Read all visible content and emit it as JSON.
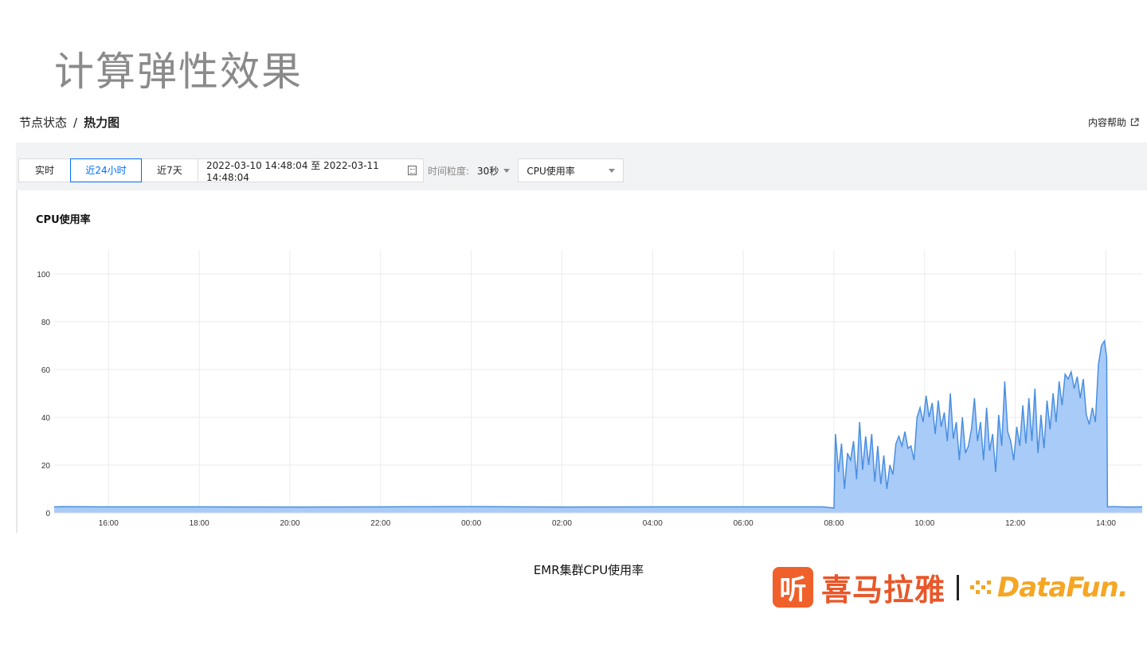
{
  "slide": {
    "title": "计算弹性效果",
    "caption": "EMR集群CPU使用率"
  },
  "breadcrumb": {
    "parent": "节点状态",
    "separator": "/",
    "current": "热力图"
  },
  "help": {
    "label": "内容帮助",
    "icon": "external-link-icon"
  },
  "toolbar": {
    "buttons": [
      "实时",
      "近24小时",
      "近7天"
    ],
    "active_index": 1,
    "date_range": "2022-03-10 14:48:04 至 2022-03-11 14:48:04",
    "date_icon": "calendar-icon",
    "granularity_label": "时间粒度:",
    "granularity_value": "30秒",
    "metric_value": "CPU使用率"
  },
  "colors": {
    "accent": "#006eff",
    "line": "#4a8fe0",
    "fill": "#a9cbf8",
    "title_gray": "#8a8a8a",
    "logo_orange": "#e8572a",
    "datafun_yellow": "#f5a623"
  },
  "chart_data": {
    "type": "area",
    "title": "CPU使用率",
    "xlabel": "",
    "ylabel": "",
    "ylim": [
      0,
      110
    ],
    "yticks": [
      0,
      20,
      40,
      60,
      80,
      100
    ],
    "x_start": "2022-03-10 14:48",
    "x_end": "2022-03-11 14:48",
    "xticks": [
      {
        "time": "2022-03-10 16:00",
        "label": "16:00"
      },
      {
        "time": "2022-03-10 18:00",
        "label": "18:00"
      },
      {
        "time": "2022-03-10 20:00",
        "label": "20:00"
      },
      {
        "time": "2022-03-10 22:00",
        "label": "22:00"
      },
      {
        "time": "2022-03-11 00:00",
        "label": "00:00"
      },
      {
        "time": "2022-03-11 02:00",
        "label": "02:00"
      },
      {
        "time": "2022-03-11 04:00",
        "label": "04:00"
      },
      {
        "time": "2022-03-11 06:00",
        "label": "06:00"
      },
      {
        "time": "2022-03-11 08:00",
        "label": "08:00"
      },
      {
        "time": "2022-03-11 10:00",
        "label": "10:00"
      },
      {
        "time": "2022-03-11 12:00",
        "label": "12:00"
      },
      {
        "time": "2022-03-11 14:00",
        "label": "14:00"
      }
    ],
    "grid": true,
    "series": [
      {
        "values": [
          [
            "2022-03-10 14:48",
            2.5
          ],
          [
            "2022-03-10 15:00",
            2.6
          ],
          [
            "2022-03-10 16:00",
            2.5
          ],
          [
            "2022-03-10 18:00",
            2.5
          ],
          [
            "2022-03-10 20:00",
            2.4
          ],
          [
            "2022-03-10 22:00",
            2.5
          ],
          [
            "2022-03-11 00:00",
            2.6
          ],
          [
            "2022-03-11 02:00",
            2.4
          ],
          [
            "2022-03-11 04:00",
            2.5
          ],
          [
            "2022-03-11 06:00",
            2.5
          ],
          [
            "2022-03-11 07:45",
            2.5
          ],
          [
            "2022-03-11 08:00",
            2
          ],
          [
            "2022-03-11 08:02",
            33
          ],
          [
            "2022-03-11 08:06",
            17
          ],
          [
            "2022-03-11 08:10",
            29
          ],
          [
            "2022-03-11 08:14",
            10
          ],
          [
            "2022-03-11 08:18",
            25
          ],
          [
            "2022-03-11 08:22",
            22
          ],
          [
            "2022-03-11 08:26",
            30
          ],
          [
            "2022-03-11 08:30",
            14
          ],
          [
            "2022-03-11 08:34",
            38
          ],
          [
            "2022-03-11 08:38",
            18
          ],
          [
            "2022-03-11 08:42",
            32
          ],
          [
            "2022-03-11 08:46",
            20
          ],
          [
            "2022-03-11 08:50",
            33
          ],
          [
            "2022-03-11 08:54",
            13
          ],
          [
            "2022-03-11 08:58",
            28
          ],
          [
            "2022-03-11 09:02",
            12
          ],
          [
            "2022-03-11 09:06",
            24
          ],
          [
            "2022-03-11 09:10",
            10
          ],
          [
            "2022-03-11 09:14",
            20
          ],
          [
            "2022-03-11 09:18",
            16
          ],
          [
            "2022-03-11 09:22",
            29
          ],
          [
            "2022-03-11 09:26",
            32
          ],
          [
            "2022-03-11 09:30",
            28
          ],
          [
            "2022-03-11 09:34",
            34
          ],
          [
            "2022-03-11 09:38",
            27
          ],
          [
            "2022-03-11 09:42",
            28
          ],
          [
            "2022-03-11 09:46",
            22
          ],
          [
            "2022-03-11 09:50",
            40
          ],
          [
            "2022-03-11 09:54",
            44
          ],
          [
            "2022-03-11 09:58",
            38
          ],
          [
            "2022-03-11 10:02",
            49
          ],
          [
            "2022-03-11 10:06",
            40
          ],
          [
            "2022-03-11 10:10",
            46
          ],
          [
            "2022-03-11 10:14",
            33
          ],
          [
            "2022-03-11 10:18",
            47
          ],
          [
            "2022-03-11 10:22",
            36
          ],
          [
            "2022-03-11 10:26",
            42
          ],
          [
            "2022-03-11 10:30",
            30
          ],
          [
            "2022-03-11 10:34",
            50
          ],
          [
            "2022-03-11 10:38",
            31
          ],
          [
            "2022-03-11 10:42",
            38
          ],
          [
            "2022-03-11 10:46",
            22
          ],
          [
            "2022-03-11 10:50",
            40
          ],
          [
            "2022-03-11 10:54",
            25
          ],
          [
            "2022-03-11 10:58",
            28
          ],
          [
            "2022-03-11 11:02",
            35
          ],
          [
            "2022-03-11 11:06",
            48
          ],
          [
            "2022-03-11 11:10",
            30
          ],
          [
            "2022-03-11 11:14",
            38
          ],
          [
            "2022-03-11 11:18",
            22
          ],
          [
            "2022-03-11 11:22",
            44
          ],
          [
            "2022-03-11 11:26",
            26
          ],
          [
            "2022-03-11 11:30",
            33
          ],
          [
            "2022-03-11 11:34",
            17
          ],
          [
            "2022-03-11 11:38",
            41
          ],
          [
            "2022-03-11 11:42",
            28
          ],
          [
            "2022-03-11 11:46",
            55
          ],
          [
            "2022-03-11 11:50",
            34
          ],
          [
            "2022-03-11 11:54",
            30
          ],
          [
            "2022-03-11 11:58",
            22
          ],
          [
            "2022-03-11 12:02",
            36
          ],
          [
            "2022-03-11 12:06",
            28
          ],
          [
            "2022-03-11 12:10",
            45
          ],
          [
            "2022-03-11 12:14",
            29
          ],
          [
            "2022-03-11 12:18",
            48
          ],
          [
            "2022-03-11 12:22",
            30
          ],
          [
            "2022-03-11 12:26",
            52
          ],
          [
            "2022-03-11 12:30",
            25
          ],
          [
            "2022-03-11 12:34",
            41
          ],
          [
            "2022-03-11 12:38",
            27
          ],
          [
            "2022-03-11 12:42",
            47
          ],
          [
            "2022-03-11 12:46",
            35
          ],
          [
            "2022-03-11 12:50",
            50
          ],
          [
            "2022-03-11 12:54",
            38
          ],
          [
            "2022-03-11 12:58",
            55
          ],
          [
            "2022-03-11 13:02",
            45
          ],
          [
            "2022-03-11 13:06",
            58
          ],
          [
            "2022-03-11 13:10",
            56
          ],
          [
            "2022-03-11 13:14",
            59
          ],
          [
            "2022-03-11 13:18",
            52
          ],
          [
            "2022-03-11 13:22",
            57
          ],
          [
            "2022-03-11 13:26",
            48
          ],
          [
            "2022-03-11 13:30",
            56
          ],
          [
            "2022-03-11 13:34",
            41
          ],
          [
            "2022-03-11 13:38",
            37
          ],
          [
            "2022-03-11 13:42",
            44
          ],
          [
            "2022-03-11 13:46",
            38
          ],
          [
            "2022-03-11 13:50",
            62
          ],
          [
            "2022-03-11 13:54",
            70
          ],
          [
            "2022-03-11 13:58",
            72
          ],
          [
            "2022-03-11 14:01",
            65
          ],
          [
            "2022-03-11 14:02",
            2.5
          ],
          [
            "2022-03-11 14:10",
            2.6
          ],
          [
            "2022-03-11 14:30",
            2.4
          ],
          [
            "2022-03-11 14:48",
            2.5
          ]
        ]
      }
    ]
  },
  "logo": {
    "badge_char": "听",
    "name": "喜马拉雅",
    "partner": "DataFun."
  }
}
